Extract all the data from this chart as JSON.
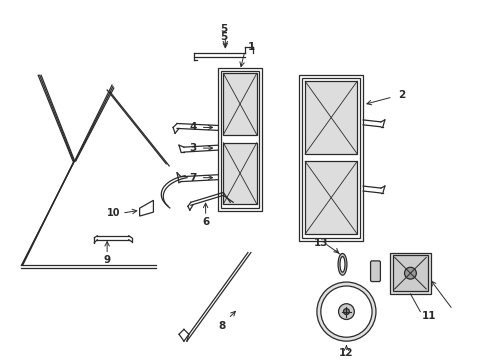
{
  "bg_color": "#ffffff",
  "lc": "#2a2a2a",
  "figsize": [
    4.9,
    3.6
  ],
  "dpi": 100
}
